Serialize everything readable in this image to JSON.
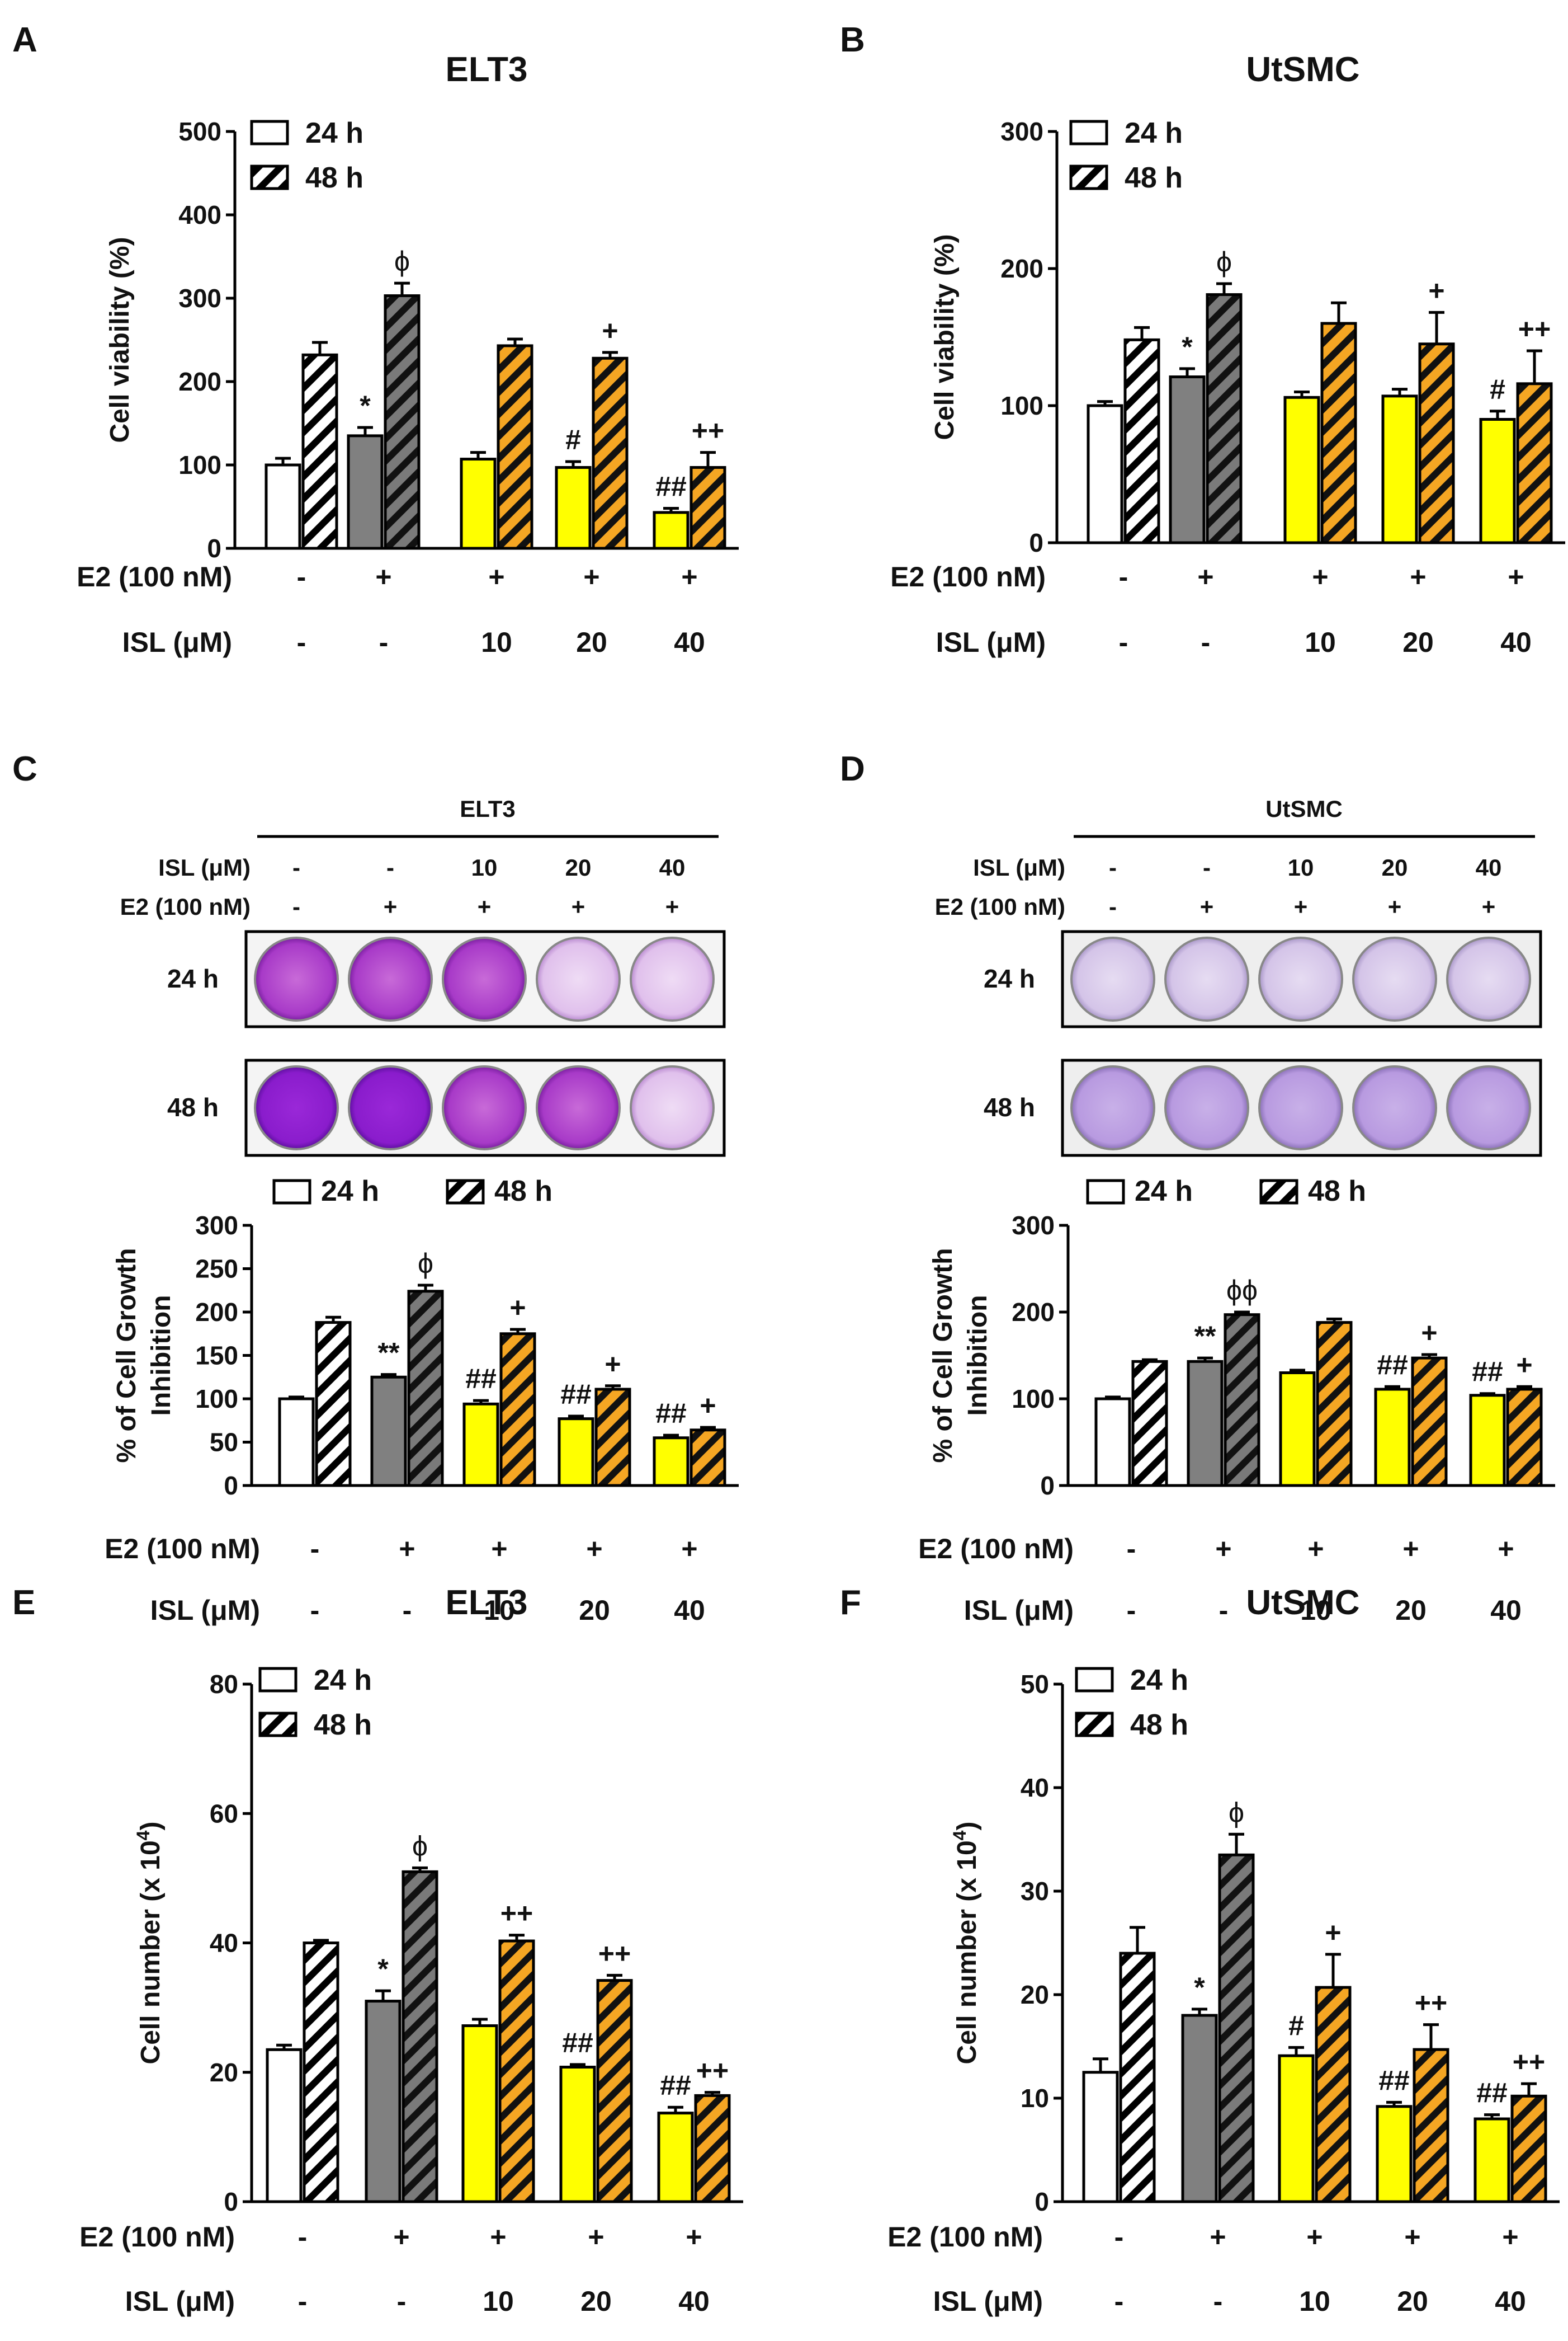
{
  "panels": {
    "A": "A",
    "B": "B",
    "C": "C",
    "D": "D",
    "E": "E",
    "F": "F"
  },
  "treatments": {
    "e2_label": "E2 (100 nM)",
    "isl_label": "ISL (μM)",
    "e2": [
      "-",
      "+",
      "+",
      "+",
      "+"
    ],
    "isl": [
      "-",
      "-",
      "10",
      "20",
      "40"
    ]
  },
  "legend": {
    "h24": "24 h",
    "h48": "48 h"
  },
  "colors": {
    "control": "#ffffff",
    "e2": "#808080",
    "isl": "#ffff00",
    "hatch_isl": "#f5a623",
    "hatch_e2": "#5a5a5a",
    "line": "#000000"
  },
  "plates": {
    "C": {
      "header": "ELT3",
      "isl_label": "ISL (μM)",
      "e2_label": "E2 (100 nM)",
      "rows": [
        "24 h",
        "48 h"
      ]
    },
    "D": {
      "header": "UtSMC",
      "isl_label": "ISL (μM)",
      "e2_label": "E2 (100 nM)",
      "rows": [
        "24 h",
        "48 h"
      ]
    }
  },
  "chart_data": [
    {
      "id": "A",
      "type": "bar",
      "title": "ELT3",
      "ylabel": "Cell viability (%)",
      "ylim": [
        0,
        500
      ],
      "yticks": [
        0,
        100,
        200,
        300,
        400,
        500
      ],
      "categories": [
        "-/-",
        "+/-",
        "+/10",
        "+/20",
        "+/40"
      ],
      "series": [
        {
          "name": "24 h",
          "values": [
            100,
            135,
            107,
            97,
            43
          ],
          "errors": [
            8,
            10,
            8,
            7,
            5
          ]
        },
        {
          "name": "48 h",
          "values": [
            232,
            303,
            243,
            228,
            97
          ],
          "errors": [
            15,
            15,
            8,
            7,
            18
          ]
        }
      ],
      "annotations": [
        {
          "group": 1,
          "series": 0,
          "text": "*"
        },
        {
          "group": 1,
          "series": 1,
          "text": "ϕ"
        },
        {
          "group": 3,
          "series": 0,
          "text": "#"
        },
        {
          "group": 3,
          "series": 1,
          "text": "+"
        },
        {
          "group": 4,
          "series": 0,
          "text": "##"
        },
        {
          "group": 4,
          "series": 1,
          "text": "++"
        }
      ]
    },
    {
      "id": "B",
      "type": "bar",
      "title": "UtSMC",
      "ylabel": "Cell viability (%)",
      "ylim": [
        0,
        300
      ],
      "yticks": [
        0,
        100,
        200,
        300
      ],
      "categories": [
        "-/-",
        "+/-",
        "+/10",
        "+/20",
        "+/40"
      ],
      "series": [
        {
          "name": "24 h",
          "values": [
            100,
            121,
            106,
            107,
            90
          ],
          "errors": [
            3,
            6,
            4,
            5,
            6
          ]
        },
        {
          "name": "48 h",
          "values": [
            148,
            181,
            160,
            145,
            116
          ],
          "errors": [
            9,
            8,
            15,
            23,
            24
          ]
        }
      ],
      "annotations": [
        {
          "group": 1,
          "series": 0,
          "text": "*"
        },
        {
          "group": 1,
          "series": 1,
          "text": "ϕ"
        },
        {
          "group": 3,
          "series": 1,
          "text": "+"
        },
        {
          "group": 4,
          "series": 0,
          "text": "#"
        },
        {
          "group": 4,
          "series": 1,
          "text": "++"
        }
      ]
    },
    {
      "id": "C",
      "type": "bar",
      "title": "",
      "ylabel": "% of Cell Growth|Inhibition",
      "ylim": [
        0,
        300
      ],
      "yticks": [
        0,
        50,
        100,
        150,
        200,
        250,
        300
      ],
      "categories": [
        "-/-",
        "+/-",
        "+/10",
        "+/20",
        "+/40"
      ],
      "series": [
        {
          "name": "24 h",
          "values": [
            100,
            125,
            94,
            77,
            55
          ],
          "errors": [
            2,
            3,
            4,
            3,
            3
          ]
        },
        {
          "name": "48 h",
          "values": [
            188,
            224,
            175,
            111,
            64
          ],
          "errors": [
            6,
            7,
            5,
            4,
            3
          ]
        }
      ],
      "annotations": [
        {
          "group": 1,
          "series": 0,
          "text": "**"
        },
        {
          "group": 1,
          "series": 1,
          "text": "ϕ"
        },
        {
          "group": 2,
          "series": 0,
          "text": "##"
        },
        {
          "group": 2,
          "series": 1,
          "text": "+"
        },
        {
          "group": 3,
          "series": 0,
          "text": "##"
        },
        {
          "group": 3,
          "series": 1,
          "text": "+"
        },
        {
          "group": 4,
          "series": 0,
          "text": "##"
        },
        {
          "group": 4,
          "series": 1,
          "text": "+"
        }
      ]
    },
    {
      "id": "D",
      "type": "bar",
      "title": "",
      "ylabel": "% of Cell Growth|Inhibition",
      "ylim": [
        0,
        300
      ],
      "yticks": [
        0,
        100,
        200,
        300
      ],
      "categories": [
        "-/-",
        "+/-",
        "+/10",
        "+/20",
        "+/40"
      ],
      "series": [
        {
          "name": "24 h",
          "values": [
            100,
            143,
            130,
            111,
            104
          ],
          "errors": [
            2,
            4,
            3,
            3,
            2
          ]
        },
        {
          "name": "48 h",
          "values": [
            143,
            197,
            188,
            147,
            111
          ],
          "errors": [
            2,
            3,
            4,
            4,
            3
          ]
        }
      ],
      "annotations": [
        {
          "group": 1,
          "series": 0,
          "text": "**"
        },
        {
          "group": 1,
          "series": 1,
          "text": "ϕϕ"
        },
        {
          "group": 3,
          "series": 0,
          "text": "##"
        },
        {
          "group": 3,
          "series": 1,
          "text": "+"
        },
        {
          "group": 4,
          "series": 0,
          "text": "##"
        },
        {
          "group": 4,
          "series": 1,
          "text": "+"
        }
      ]
    },
    {
      "id": "E",
      "type": "bar",
      "title": "ELT3",
      "ylabel": "Cell number (x 10",
      "ylabel_sup": "4",
      "ylabel_end": ")",
      "ylim": [
        0,
        80
      ],
      "yticks": [
        0,
        20,
        40,
        60,
        80
      ],
      "categories": [
        "-/-",
        "+/-",
        "+/10",
        "+/20",
        "+/40"
      ],
      "series": [
        {
          "name": "24 h",
          "values": [
            23.5,
            31,
            27.2,
            20.8,
            13.7
          ],
          "errors": [
            0.7,
            1.6,
            1,
            0.4,
            0.9
          ]
        },
        {
          "name": "48 h",
          "values": [
            40,
            51,
            40.3,
            34.2,
            16.4
          ],
          "errors": [
            0.4,
            0.6,
            0.9,
            0.8,
            0.5
          ]
        }
      ],
      "annotations": [
        {
          "group": 1,
          "series": 0,
          "text": "*"
        },
        {
          "group": 1,
          "series": 1,
          "text": "ϕ"
        },
        {
          "group": 2,
          "series": 1,
          "text": "++"
        },
        {
          "group": 3,
          "series": 0,
          "text": "##"
        },
        {
          "group": 3,
          "series": 1,
          "text": "++"
        },
        {
          "group": 4,
          "series": 0,
          "text": "##"
        },
        {
          "group": 4,
          "series": 1,
          "text": "++"
        }
      ]
    },
    {
      "id": "F",
      "type": "bar",
      "title": "UtSMC",
      "ylabel": "Cell number (x 10",
      "ylabel_sup": "4",
      "ylabel_end": ")",
      "ylim": [
        0,
        50
      ],
      "yticks": [
        0,
        10,
        20,
        30,
        40,
        50
      ],
      "categories": [
        "-/-",
        "+/-",
        "+/10",
        "+/20",
        "+/40"
      ],
      "series": [
        {
          "name": "24 h",
          "values": [
            12.5,
            18,
            14.1,
            9.2,
            8
          ],
          "errors": [
            1.3,
            0.6,
            0.8,
            0.4,
            0.4
          ]
        },
        {
          "name": "48 h",
          "values": [
            24,
            33.5,
            20.7,
            14.7,
            10.2
          ],
          "errors": [
            2.5,
            2,
            3.2,
            2.4,
            1.2
          ]
        }
      ],
      "annotations": [
        {
          "group": 1,
          "series": 0,
          "text": "*"
        },
        {
          "group": 1,
          "series": 1,
          "text": "ϕ"
        },
        {
          "group": 2,
          "series": 0,
          "text": "#"
        },
        {
          "group": 2,
          "series": 1,
          "text": "+"
        },
        {
          "group": 3,
          "series": 0,
          "text": "##"
        },
        {
          "group": 3,
          "series": 1,
          "text": "++"
        },
        {
          "group": 4,
          "series": 0,
          "text": "##"
        },
        {
          "group": 4,
          "series": 1,
          "text": "++"
        }
      ]
    }
  ]
}
